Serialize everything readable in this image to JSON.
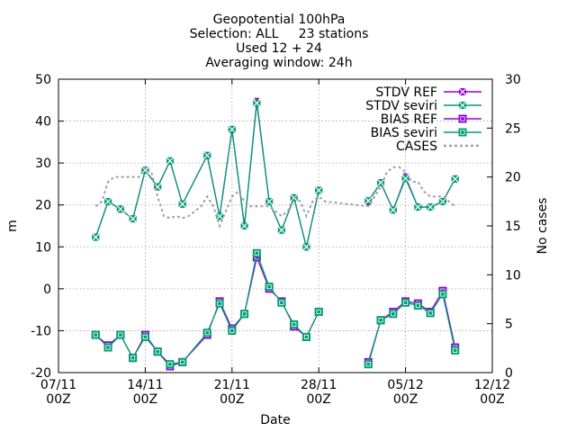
{
  "chart_data": {
    "type": "line",
    "title_lines": [
      "Geopotential 100hPa",
      "Selection: ALL     23 stations",
      "Used 12 + 24",
      "Averaging window: 24h"
    ],
    "xlabel": "Date",
    "ylabel": "m",
    "y2label": "No cases",
    "xlim": [
      "2022-11-07T00:00",
      "2022-12-12T00:00"
    ],
    "ylim": [
      -20,
      50
    ],
    "y2lim": [
      0,
      30
    ],
    "grid": true,
    "legend_position": "top-right",
    "x_ticks": [
      {
        "line1": "07/11",
        "line2": "00Z",
        "day": 0
      },
      {
        "line1": "14/11",
        "line2": "00Z",
        "day": 7
      },
      {
        "line1": "21/11",
        "line2": "00Z",
        "day": 14
      },
      {
        "line1": "28/11",
        "line2": "00Z",
        "day": 21
      },
      {
        "line1": "05/12",
        "line2": "00Z",
        "day": 28
      },
      {
        "line1": "12/12",
        "line2": "00Z",
        "day": 35
      }
    ],
    "y_ticks": [
      "-20",
      "-10",
      "0",
      "10",
      "20",
      "30",
      "40",
      "50"
    ],
    "y2_ticks": [
      "0",
      "5",
      "10",
      "15",
      "20",
      "25",
      "30"
    ],
    "series": [
      {
        "name": "STDV REF",
        "color": "#9400d3",
        "marker": "x-square",
        "axis": "y",
        "points": [
          [
            3,
            12.3
          ],
          [
            4,
            20.8
          ],
          [
            5,
            19
          ],
          [
            6,
            16.7
          ],
          [
            7,
            28.3
          ],
          [
            8,
            24.3
          ],
          [
            9,
            30.5
          ],
          [
            10,
            20.2
          ],
          [
            12,
            31.8
          ],
          [
            13,
            17.3
          ],
          [
            14,
            38
          ],
          [
            15,
            15
          ],
          [
            16,
            44.7
          ],
          [
            17,
            20.8
          ],
          [
            18,
            14
          ],
          [
            19,
            21.7
          ],
          [
            20,
            10
          ],
          [
            21,
            23.5
          ],
          [
            25,
            20.8
          ],
          [
            26,
            25.3
          ],
          [
            27,
            18.8
          ],
          [
            28,
            26.7
          ],
          [
            29,
            19.5
          ],
          [
            30,
            19.5
          ],
          [
            31,
            20.8
          ],
          [
            32,
            26.2
          ]
        ]
      },
      {
        "name": "STDV seviri",
        "color": "#009e73",
        "marker": "x-square",
        "axis": "y",
        "points": [
          [
            3,
            12.3
          ],
          [
            4,
            20.8
          ],
          [
            5,
            19
          ],
          [
            6,
            16.7
          ],
          [
            7,
            28.3
          ],
          [
            8,
            24.3
          ],
          [
            9,
            30.5
          ],
          [
            10,
            20.2
          ],
          [
            12,
            31.8
          ],
          [
            13,
            17.3
          ],
          [
            14,
            38
          ],
          [
            15,
            15
          ],
          [
            16,
            44.3
          ],
          [
            17,
            20.8
          ],
          [
            18,
            14
          ],
          [
            19,
            21.7
          ],
          [
            20,
            10
          ],
          [
            21,
            23.5
          ],
          [
            25,
            21
          ],
          [
            26,
            25.3
          ],
          [
            27,
            18.8
          ],
          [
            28,
            26.3
          ],
          [
            29,
            19.5
          ],
          [
            30,
            19.5
          ],
          [
            31,
            20.8
          ],
          [
            32,
            26.2
          ]
        ]
      },
      {
        "name": "BIAS REF",
        "color": "#9400d3",
        "marker": "square",
        "axis": "y",
        "points": [
          [
            3,
            -11
          ],
          [
            4,
            -13.5
          ],
          [
            5,
            -11
          ],
          [
            6,
            -16.5
          ],
          [
            7,
            -11
          ],
          [
            8,
            -15
          ],
          [
            9,
            -18.5
          ],
          [
            10,
            -17.5
          ],
          [
            12,
            -11
          ],
          [
            13,
            -3
          ],
          [
            14,
            -9.5
          ],
          [
            15,
            -6
          ],
          [
            16,
            7.5
          ],
          [
            17,
            0
          ],
          [
            18,
            -3
          ],
          [
            19,
            -9
          ],
          [
            20,
            -11.5
          ],
          [
            21,
            -5.5
          ],
          [
            25,
            -17.5
          ],
          [
            26,
            -7.5
          ],
          [
            27,
            -5.5
          ],
          [
            28,
            -3
          ],
          [
            29,
            -3.5
          ],
          [
            30,
            -5.5
          ],
          [
            31,
            -0.5
          ],
          [
            32,
            -14
          ]
        ]
      },
      {
        "name": "BIAS seviri",
        "color": "#009e73",
        "marker": "square",
        "axis": "y",
        "points": [
          [
            3,
            -11
          ],
          [
            4,
            -14
          ],
          [
            5,
            -11
          ],
          [
            6,
            -16.5
          ],
          [
            7,
            -11.5
          ],
          [
            8,
            -15
          ],
          [
            9,
            -18
          ],
          [
            10,
            -17.5
          ],
          [
            12,
            -10.5
          ],
          [
            13,
            -3.5
          ],
          [
            14,
            -10
          ],
          [
            15,
            -6
          ],
          [
            16,
            8.5
          ],
          [
            17,
            0.5
          ],
          [
            18,
            -3.3
          ],
          [
            19,
            -8.5
          ],
          [
            20,
            -11.5
          ],
          [
            21,
            -5.5
          ],
          [
            25,
            -18
          ],
          [
            26,
            -7.5
          ],
          [
            27,
            -6
          ],
          [
            28,
            -3.3
          ],
          [
            29,
            -4
          ],
          [
            30,
            -5.8
          ],
          [
            31,
            -1.3
          ],
          [
            32,
            -14.7
          ]
        ]
      },
      {
        "name": "CASES",
        "color": "#a0a0a0",
        "marker": "none",
        "axis": "y2",
        "dashed": true,
        "points": [
          [
            3,
            17
          ],
          [
            3.5,
            17.5
          ],
          [
            4,
            19.5
          ],
          [
            4.5,
            20
          ],
          [
            5,
            20
          ],
          [
            5.5,
            20
          ],
          [
            6,
            20
          ],
          [
            6.5,
            20
          ],
          [
            7,
            21
          ],
          [
            7.5,
            20.5
          ],
          [
            8,
            18
          ],
          [
            8.5,
            16
          ],
          [
            9,
            15.8
          ],
          [
            9.5,
            16
          ],
          [
            10,
            15.8
          ],
          [
            10.5,
            16
          ],
          [
            11,
            16.5
          ],
          [
            11.5,
            17
          ],
          [
            12,
            18
          ],
          [
            12.5,
            17
          ],
          [
            13,
            15
          ],
          [
            13.5,
            16.5
          ],
          [
            14,
            18
          ],
          [
            14.5,
            18.5
          ],
          [
            15,
            17.5
          ],
          [
            15.5,
            17
          ],
          [
            16,
            17
          ],
          [
            16.5,
            17
          ],
          [
            17,
            17
          ],
          [
            17.5,
            16.5
          ],
          [
            18,
            16
          ],
          [
            18.5,
            16.5
          ],
          [
            19,
            18
          ],
          [
            19.5,
            17.5
          ],
          [
            20,
            16
          ],
          [
            20.5,
            17.5
          ],
          [
            21,
            18
          ],
          [
            21.5,
            17.5
          ],
          [
            25,
            17
          ],
          [
            26,
            19
          ],
          [
            26.5,
            20.5
          ],
          [
            27,
            21
          ],
          [
            27.5,
            21
          ],
          [
            28,
            20.5
          ],
          [
            28.5,
            19.5
          ],
          [
            29,
            19.5
          ],
          [
            29.5,
            18.5
          ],
          [
            30,
            18
          ],
          [
            30.5,
            18
          ],
          [
            31,
            18
          ],
          [
            31.5,
            17.5
          ],
          [
            32,
            17
          ]
        ]
      }
    ]
  }
}
